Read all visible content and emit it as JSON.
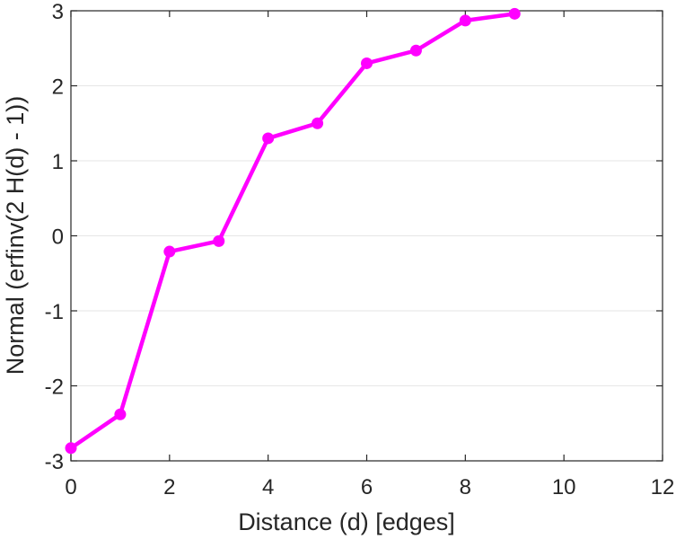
{
  "chart_data": {
    "type": "line",
    "title": "",
    "xlabel": "Distance (d) [edges]",
    "ylabel": "Normal (erfinv(2 H(d) - 1))",
    "xlim": [
      0,
      12
    ],
    "ylim": [
      -3,
      3
    ],
    "xticks": [
      "0",
      "2",
      "4",
      "6",
      "8",
      "10",
      "12"
    ],
    "yticks": [
      "3",
      "2",
      "1",
      "0",
      "-1",
      "-2",
      "-3"
    ],
    "grid": "horizontal",
    "legend": "none",
    "series": [
      {
        "color": "#ff00ff",
        "marker": "circle",
        "x": [
          0,
          1,
          2,
          3,
          4,
          5,
          6,
          7,
          8,
          9
        ],
        "y": [
          -2.83,
          -2.38,
          -0.21,
          -0.07,
          1.3,
          1.5,
          2.3,
          2.47,
          2.87,
          2.96
        ]
      }
    ]
  }
}
